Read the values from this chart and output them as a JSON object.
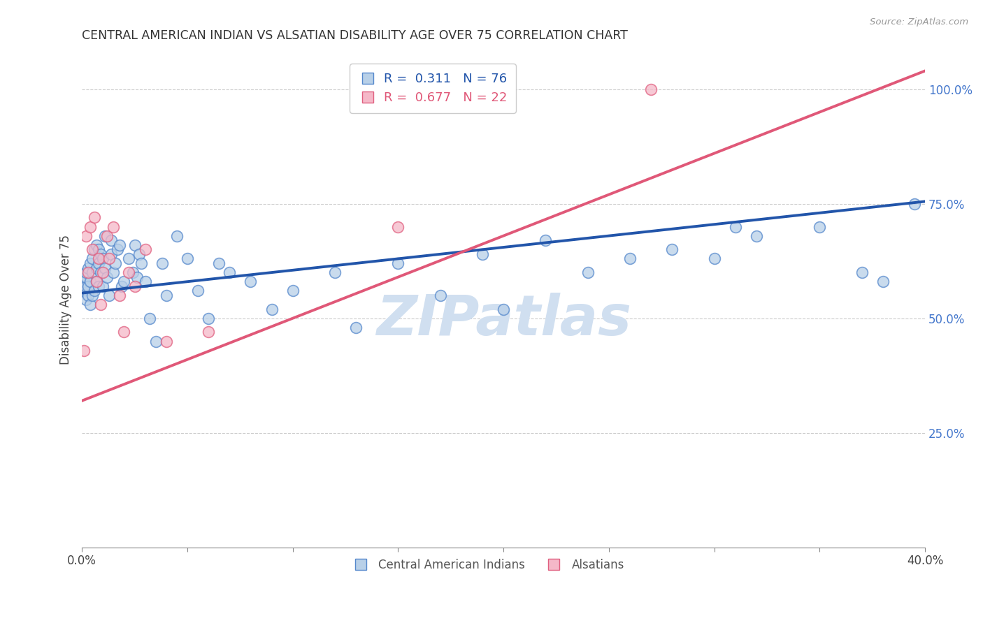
{
  "title": "CENTRAL AMERICAN INDIAN VS ALSATIAN DISABILITY AGE OVER 75 CORRELATION CHART",
  "source": "Source: ZipAtlas.com",
  "ylabel": "Disability Age Over 75",
  "xlim": [
    0.0,
    0.4
  ],
  "ylim": [
    0.0,
    1.08
  ],
  "yticks": [
    0.25,
    0.5,
    0.75,
    1.0
  ],
  "ytick_labels": [
    "25.0%",
    "50.0%",
    "75.0%",
    "100.0%"
  ],
  "xticks": [
    0.0,
    0.05,
    0.1,
    0.15,
    0.2,
    0.25,
    0.3,
    0.35,
    0.4
  ],
  "xtick_labels": [
    "0.0%",
    "",
    "",
    "",
    "",
    "",
    "",
    "",
    "40.0%"
  ],
  "blue_R": 0.311,
  "blue_N": 76,
  "pink_R": 0.677,
  "pink_N": 22,
  "blue_color": "#b8d0e8",
  "pink_color": "#f5b8c8",
  "blue_edge_color": "#5588cc",
  "pink_edge_color": "#e06080",
  "blue_line_color": "#2255aa",
  "pink_line_color": "#e05878",
  "legend_blue_label": "Central American Indians",
  "legend_pink_label": "Alsatians",
  "watermark": "ZIPatlas",
  "watermark_color": "#d0dff0",
  "blue_trend_x0": 0.0,
  "blue_trend_y0": 0.555,
  "blue_trend_x1": 0.4,
  "blue_trend_y1": 0.755,
  "pink_trend_x0": 0.0,
  "pink_trend_y0": 0.32,
  "pink_trend_x1": 0.4,
  "pink_trend_y1": 1.04,
  "blue_x": [
    0.001,
    0.001,
    0.002,
    0.002,
    0.002,
    0.002,
    0.003,
    0.003,
    0.003,
    0.004,
    0.004,
    0.004,
    0.005,
    0.005,
    0.005,
    0.006,
    0.006,
    0.007,
    0.007,
    0.007,
    0.008,
    0.008,
    0.008,
    0.009,
    0.009,
    0.01,
    0.01,
    0.011,
    0.011,
    0.012,
    0.013,
    0.014,
    0.014,
    0.015,
    0.016,
    0.017,
    0.018,
    0.019,
    0.02,
    0.022,
    0.024,
    0.025,
    0.026,
    0.027,
    0.028,
    0.03,
    0.032,
    0.035,
    0.038,
    0.04,
    0.045,
    0.05,
    0.055,
    0.06,
    0.065,
    0.07,
    0.08,
    0.09,
    0.1,
    0.12,
    0.13,
    0.15,
    0.17,
    0.19,
    0.2,
    0.22,
    0.24,
    0.26,
    0.28,
    0.3,
    0.31,
    0.32,
    0.35,
    0.37,
    0.38,
    0.395
  ],
  "blue_y": [
    0.56,
    0.58,
    0.54,
    0.57,
    0.59,
    0.6,
    0.55,
    0.57,
    0.61,
    0.53,
    0.58,
    0.62,
    0.55,
    0.6,
    0.63,
    0.56,
    0.65,
    0.58,
    0.61,
    0.66,
    0.57,
    0.62,
    0.65,
    0.6,
    0.64,
    0.57,
    0.63,
    0.61,
    0.68,
    0.59,
    0.55,
    0.64,
    0.67,
    0.6,
    0.62,
    0.65,
    0.66,
    0.57,
    0.58,
    0.63,
    0.6,
    0.66,
    0.59,
    0.64,
    0.62,
    0.58,
    0.5,
    0.45,
    0.62,
    0.55,
    0.68,
    0.63,
    0.56,
    0.5,
    0.62,
    0.6,
    0.58,
    0.52,
    0.56,
    0.6,
    0.48,
    0.62,
    0.55,
    0.64,
    0.52,
    0.67,
    0.6,
    0.63,
    0.65,
    0.63,
    0.7,
    0.68,
    0.7,
    0.6,
    0.58,
    0.75
  ],
  "pink_x": [
    0.001,
    0.002,
    0.003,
    0.004,
    0.005,
    0.006,
    0.007,
    0.008,
    0.009,
    0.01,
    0.012,
    0.013,
    0.015,
    0.018,
    0.02,
    0.022,
    0.025,
    0.03,
    0.04,
    0.06,
    0.15,
    0.27
  ],
  "pink_y": [
    0.43,
    0.68,
    0.6,
    0.7,
    0.65,
    0.72,
    0.58,
    0.63,
    0.53,
    0.6,
    0.68,
    0.63,
    0.7,
    0.55,
    0.47,
    0.6,
    0.57,
    0.65,
    0.45,
    0.47,
    0.7,
    1.0
  ]
}
